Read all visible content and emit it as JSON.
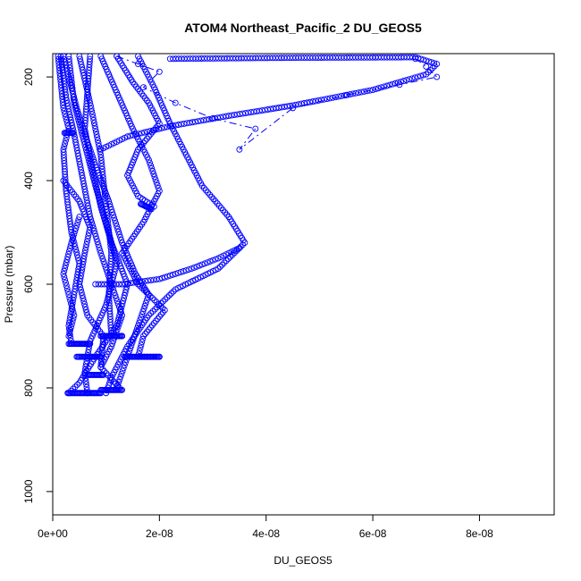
{
  "chart_data": {
    "type": "scatter",
    "title": "ATOM4 Northeast_Pacific_2 DU_GEOS5",
    "xlabel": "DU_GEOS5",
    "ylabel": "Pressure (mbar)",
    "xlim": [
      0,
      9.4e-08
    ],
    "ylim": [
      1045,
      155
    ],
    "y_reversed": true,
    "x_ticks": [
      0,
      2e-08,
      4e-08,
      6e-08,
      8e-08
    ],
    "x_tick_labels": [
      "0e+00",
      "2e-08",
      "4e-08",
      "6e-08",
      "8e-08"
    ],
    "y_ticks": [
      200,
      400,
      600,
      800,
      1000
    ],
    "y_tick_labels": [
      "200",
      "400",
      "600",
      "800",
      "1000"
    ],
    "marker": "open-circle",
    "color": "#0000ff",
    "grid": false,
    "series": [
      {
        "points": [
          [
            7e-09,
            160
          ],
          [
            6.5e-09,
            230
          ],
          [
            6e-09,
            300
          ],
          [
            7.5e-09,
            380
          ],
          [
            9e-09,
            450
          ],
          [
            1.1e-08,
            520
          ],
          [
            1.4e-08,
            600
          ],
          [
            1.2e-08,
            680
          ],
          [
            8e-09,
            740
          ],
          [
            5e-09,
            790
          ],
          [
            3e-09,
            810
          ]
        ]
      },
      {
        "points": [
          [
            3e-09,
            160
          ],
          [
            4e-09,
            250
          ],
          [
            6e-09,
            330
          ],
          [
            8e-09,
            410
          ],
          [
            1e-08,
            480
          ],
          [
            1.2e-08,
            560
          ],
          [
            1e-08,
            640
          ],
          [
            7e-09,
            710
          ],
          [
            6e-09,
            770
          ],
          [
            6.5e-09,
            810
          ]
        ]
      },
      {
        "points": [
          [
            1.6e-08,
            160
          ],
          [
            1.9e-08,
            220
          ],
          [
            2.2e-08,
            290
          ],
          [
            2.5e-08,
            350
          ],
          [
            2.8e-08,
            410
          ],
          [
            3.3e-08,
            470
          ],
          [
            3.6e-08,
            520
          ],
          [
            3.1e-08,
            570
          ],
          [
            2.3e-08,
            610
          ],
          [
            1.8e-08,
            660
          ],
          [
            1.4e-08,
            720
          ],
          [
            1.1e-08,
            780
          ],
          [
            1e-08,
            810
          ]
        ]
      },
      {
        "points": [
          [
            1.5e-09,
            160
          ],
          [
            2.5e-09,
            240
          ],
          [
            4e-09,
            310
          ],
          [
            5.5e-09,
            390
          ],
          [
            7e-09,
            470
          ],
          [
            9e-09,
            540
          ],
          [
            1.1e-08,
            600
          ],
          [
            1.3e-08,
            660
          ],
          [
            1.1e-08,
            720
          ],
          [
            9e-09,
            760
          ],
          [
            1.25e-08,
            800
          ]
        ]
      },
      {
        "points": [
          [
            9e-09,
            160
          ],
          [
            1.2e-08,
            230
          ],
          [
            1.5e-08,
            300
          ],
          [
            1.8e-08,
            360
          ],
          [
            2e-08,
            420
          ],
          [
            1.7e-08,
            480
          ],
          [
            1.3e-08,
            540
          ],
          [
            1.6e-08,
            600
          ],
          [
            2.1e-08,
            650
          ],
          [
            1.7e-08,
            700
          ],
          [
            1.6e-08,
            740
          ],
          [
            2e-08,
            740
          ]
        ]
      },
      {
        "points": [
          [
            2.2e-08,
            165
          ],
          [
            4.5e-08,
            163
          ],
          [
            6.8e-08,
            162
          ],
          [
            7.2e-08,
            175
          ],
          [
            7e-08,
            195
          ],
          [
            6e-08,
            225
          ],
          [
            4.5e-08,
            255
          ],
          [
            3.3e-08,
            275
          ],
          [
            2.2e-08,
            295
          ],
          [
            1.4e-08,
            315
          ],
          [
            9e-09,
            340
          ]
        ]
      },
      {
        "points": [
          [
            1.2e-08,
            160
          ],
          [
            1.5e-08,
            210
          ],
          [
            1.8e-08,
            250
          ],
          [
            2e-08,
            290
          ],
          [
            1.6e-08,
            340
          ],
          [
            1.4e-08,
            390
          ],
          [
            1.6e-08,
            430
          ],
          [
            1.9e-08,
            450
          ]
        ]
      },
      {
        "points": [
          [
            5e-09,
            160
          ],
          [
            7e-09,
            250
          ],
          [
            9e-09,
            350
          ],
          [
            1e-08,
            450
          ],
          [
            1.1e-08,
            540
          ],
          [
            1.05e-08,
            620
          ],
          [
            1.1e-08,
            700
          ],
          [
            1.3e-08,
            700
          ]
        ]
      },
      {
        "points": [
          [
            1e-09,
            160
          ],
          [
            2e-09,
            260
          ],
          [
            3e-09,
            300
          ],
          [
            2e-09,
            340
          ],
          [
            2.5e-09,
            420
          ],
          [
            3.5e-09,
            500
          ],
          [
            5e-09,
            560
          ],
          [
            4e-09,
            620
          ],
          [
            3e-09,
            680
          ],
          [
            3.5e-09,
            715
          ],
          [
            6e-09,
            715
          ]
        ]
      },
      {
        "points": [
          [
            2e-09,
            160
          ],
          [
            3e-09,
            200
          ],
          [
            4.5e-09,
            260
          ],
          [
            6e-09,
            310
          ],
          [
            8e-09,
            370
          ],
          [
            1.05e-08,
            440
          ],
          [
            1.3e-08,
            520
          ],
          [
            1.55e-08,
            580
          ],
          [
            1.8e-08,
            620
          ],
          [
            1.6e-08,
            680
          ],
          [
            1.4e-08,
            740
          ],
          [
            1.2e-08,
            800
          ]
        ]
      },
      {
        "points": [
          [
            8e-09,
            600
          ],
          [
            1.3e-08,
            600
          ],
          [
            2e-08,
            590
          ],
          [
            2.6e-08,
            570
          ],
          [
            3.1e-08,
            550
          ],
          [
            3.5e-08,
            530
          ]
        ]
      },
      {
        "points": [
          [
            2e-09,
            400
          ],
          [
            5e-09,
            440
          ],
          [
            7e-09,
            490
          ],
          [
            6e-09,
            540
          ],
          [
            5e-09,
            600
          ],
          [
            6.5e-09,
            660
          ],
          [
            9.5e-09,
            700
          ],
          [
            9e-09,
            760
          ]
        ]
      },
      {
        "points": [
          [
            3e-09,
            700
          ],
          [
            4e-09,
            660
          ],
          [
            3e-09,
            620
          ],
          [
            2e-09,
            580
          ],
          [
            3.5e-09,
            520
          ],
          [
            5e-09,
            470
          ]
        ]
      }
    ],
    "connected_series": [
      {
        "points": [
          [
            1.2e-08,
            160
          ],
          [
            1.6e-08,
            175
          ],
          [
            2e-08,
            190
          ],
          [
            1.7e-08,
            220
          ],
          [
            2.3e-08,
            250
          ],
          [
            3e-08,
            280
          ],
          [
            3.8e-08,
            300
          ],
          [
            3.5e-08,
            340
          ],
          [
            4.5e-08,
            260
          ],
          [
            5.5e-08,
            235
          ],
          [
            6.5e-08,
            215
          ],
          [
            7.2e-08,
            200
          ],
          [
            7e-08,
            180
          ],
          [
            6.8e-08,
            165
          ]
        ]
      }
    ],
    "thick_segments": [
      {
        "points": [
          [
            2.8e-09,
            810
          ],
          [
            9e-09,
            810
          ]
        ]
      },
      {
        "points": [
          [
            9e-09,
            804
          ],
          [
            1.3e-08,
            804
          ]
        ]
      },
      {
        "points": [
          [
            4.5e-09,
            740
          ],
          [
            9e-09,
            740
          ]
        ]
      },
      {
        "points": [
          [
            1.35e-08,
            740
          ],
          [
            2e-08,
            740
          ]
        ]
      },
      {
        "points": [
          [
            3e-09,
            715
          ],
          [
            7e-09,
            715
          ]
        ]
      },
      {
        "points": [
          [
            9e-09,
            700
          ],
          [
            1.3e-08,
            700
          ]
        ]
      },
      {
        "points": [
          [
            6.5e-09,
            775
          ],
          [
            9.5e-09,
            775
          ]
        ]
      },
      {
        "points": [
          [
            1.65e-08,
            445
          ],
          [
            1.85e-08,
            455
          ]
        ]
      },
      {
        "points": [
          [
            2.2e-09,
            308
          ],
          [
            3.8e-09,
            308
          ]
        ]
      }
    ]
  }
}
